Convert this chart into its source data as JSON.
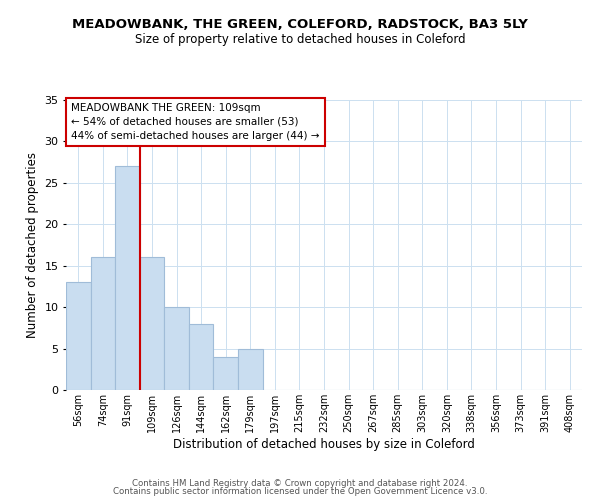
{
  "title": "MEADOWBANK, THE GREEN, COLEFORD, RADSTOCK, BA3 5LY",
  "subtitle": "Size of property relative to detached houses in Coleford",
  "xlabel": "Distribution of detached houses by size in Coleford",
  "ylabel": "Number of detached properties",
  "bar_labels": [
    "56sqm",
    "74sqm",
    "91sqm",
    "109sqm",
    "126sqm",
    "144sqm",
    "162sqm",
    "179sqm",
    "197sqm",
    "215sqm",
    "232sqm",
    "250sqm",
    "267sqm",
    "285sqm",
    "303sqm",
    "320sqm",
    "338sqm",
    "356sqm",
    "373sqm",
    "391sqm",
    "408sqm"
  ],
  "bar_values": [
    13,
    16,
    27,
    16,
    10,
    8,
    4,
    5,
    0,
    0,
    0,
    0,
    0,
    0,
    0,
    0,
    0,
    0,
    0,
    0,
    0
  ],
  "bar_color": "#c9ddf0",
  "bar_edge_color": "#a0bcd8",
  "vline_color": "#cc0000",
  "ylim": [
    0,
    35
  ],
  "yticks": [
    0,
    5,
    10,
    15,
    20,
    25,
    30,
    35
  ],
  "annotation_line1": "MEADOWBANK THE GREEN: 109sqm",
  "annotation_line2": "← 54% of detached houses are smaller (53)",
  "annotation_line3": "44% of semi-detached houses are larger (44) →",
  "annotation_box_color": "#ffffff",
  "annotation_box_edge": "#cc0000",
  "footer_line1": "Contains HM Land Registry data © Crown copyright and database right 2024.",
  "footer_line2": "Contains public sector information licensed under the Open Government Licence v3.0.",
  "background_color": "#ffffff",
  "grid_color": "#cce0f0"
}
